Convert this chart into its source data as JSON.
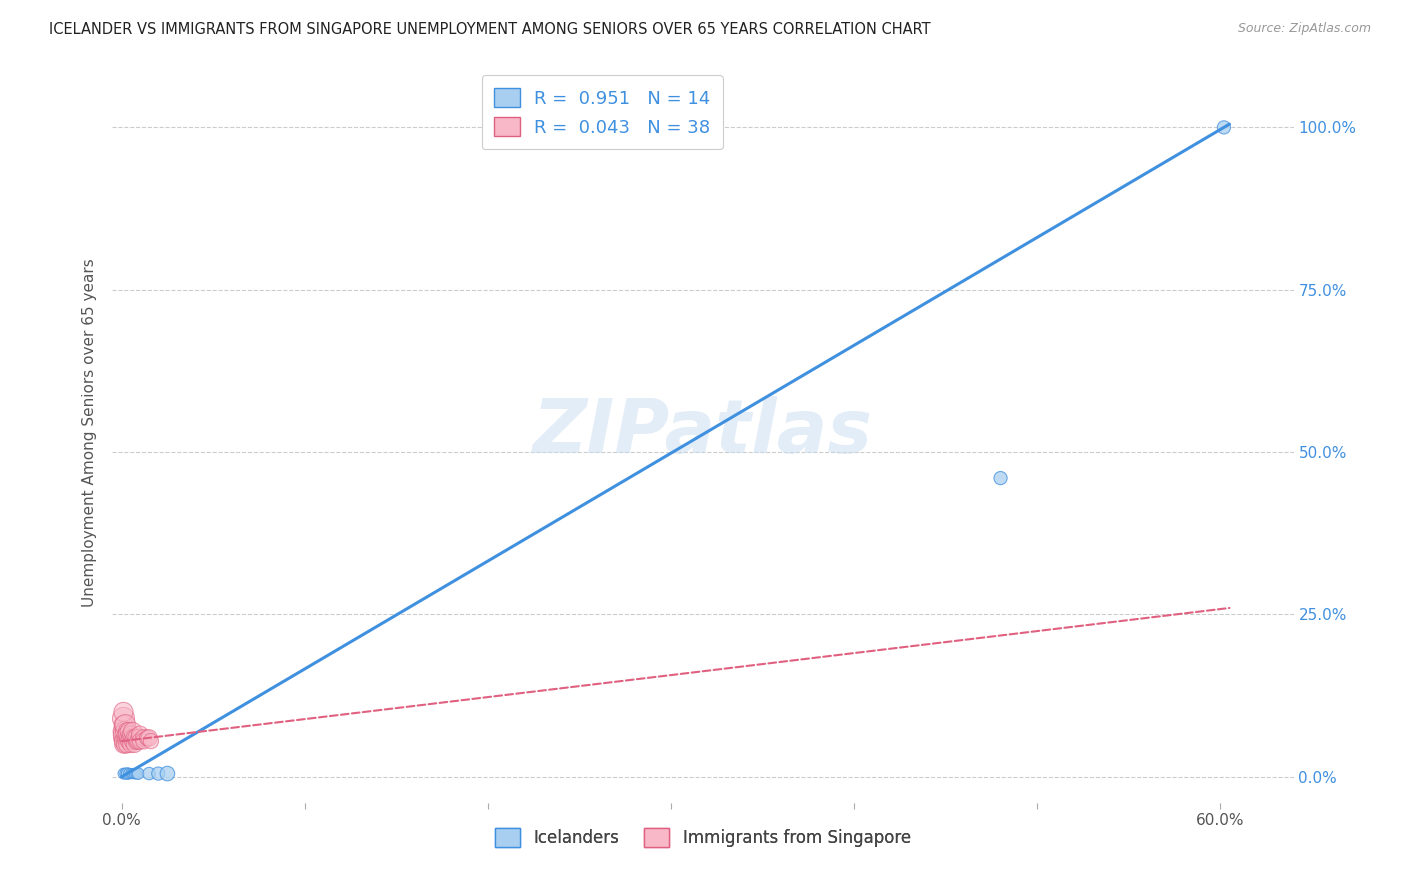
{
  "title": "ICELANDER VS IMMIGRANTS FROM SINGAPORE UNEMPLOYMENT AMONG SENIORS OVER 65 YEARS CORRELATION CHART",
  "source": "Source: ZipAtlas.com",
  "ylabel": "Unemployment Among Seniors over 65 years",
  "watermark": "ZIPatlas",
  "legend1_label": "R =  0.951   N = 14",
  "legend2_label": "R =  0.043   N = 38",
  "bottom_legend1": "Icelanders",
  "bottom_legend2": "Immigrants from Singapore",
  "blue_color": "#a8cff0",
  "pink_color": "#f8b8c8",
  "line_blue": "#4090e0",
  "line_pink": "#e06080",
  "xmin": -0.005,
  "xmax": 0.64,
  "ymin": -0.04,
  "ymax": 1.1,
  "x_ticks": [
    0.0,
    0.1,
    0.2,
    0.3,
    0.4,
    0.5,
    0.6
  ],
  "x_tick_labels": [
    "0.0%",
    "",
    "",
    "",
    "",
    "",
    "60.0%"
  ],
  "y_ticks": [
    0.0,
    0.25,
    0.5,
    0.75,
    1.0
  ],
  "y_tick_labels_right": [
    "0.0%",
    "25.0%",
    "50.0%",
    "75.0%",
    "100.0%"
  ],
  "blue_line_x0": 0.0,
  "blue_line_y0": 0.0,
  "blue_line_x1": 0.605,
  "blue_line_y1": 1.005,
  "pink_line_x0": 0.0,
  "pink_line_y0": 0.055,
  "pink_line_x1": 0.605,
  "pink_line_y1": 0.26,
  "icelanders_x": [
    0.001,
    0.002,
    0.003,
    0.004,
    0.005,
    0.006,
    0.007,
    0.008,
    0.009,
    0.015,
    0.02,
    0.025,
    0.48,
    0.602
  ],
  "icelanders_y": [
    0.005,
    0.005,
    0.005,
    0.005,
    0.005,
    0.005,
    0.005,
    0.005,
    0.005,
    0.005,
    0.005,
    0.005,
    0.46,
    1.0
  ],
  "icelanders_size": [
    60,
    60,
    70,
    60,
    50,
    55,
    55,
    60,
    70,
    80,
    90,
    110,
    90,
    90
  ],
  "singapore_x": [
    0.001,
    0.001,
    0.001,
    0.001,
    0.001,
    0.001,
    0.001,
    0.001,
    0.002,
    0.002,
    0.002,
    0.002,
    0.003,
    0.003,
    0.003,
    0.003,
    0.004,
    0.004,
    0.004,
    0.005,
    0.005,
    0.005,
    0.006,
    0.006,
    0.006,
    0.007,
    0.007,
    0.008,
    0.008,
    0.009,
    0.01,
    0.01,
    0.01,
    0.012,
    0.012,
    0.014,
    0.015,
    0.016
  ],
  "singapore_y": [
    0.09,
    0.07,
    0.06,
    0.08,
    0.05,
    0.1,
    0.065,
    0.055,
    0.06,
    0.07,
    0.05,
    0.08,
    0.06,
    0.07,
    0.05,
    0.065,
    0.06,
    0.07,
    0.055,
    0.06,
    0.065,
    0.05,
    0.06,
    0.055,
    0.07,
    0.06,
    0.05,
    0.055,
    0.06,
    0.055,
    0.06,
    0.065,
    0.055,
    0.06,
    0.055,
    0.06,
    0.06,
    0.055
  ],
  "singapore_size": [
    250,
    220,
    200,
    180,
    160,
    190,
    210,
    170,
    180,
    200,
    160,
    220,
    180,
    160,
    150,
    170,
    180,
    160,
    150,
    170,
    150,
    140,
    160,
    140,
    170,
    150,
    140,
    140,
    150,
    140,
    160,
    150,
    130,
    140,
    130,
    130,
    140,
    120
  ]
}
